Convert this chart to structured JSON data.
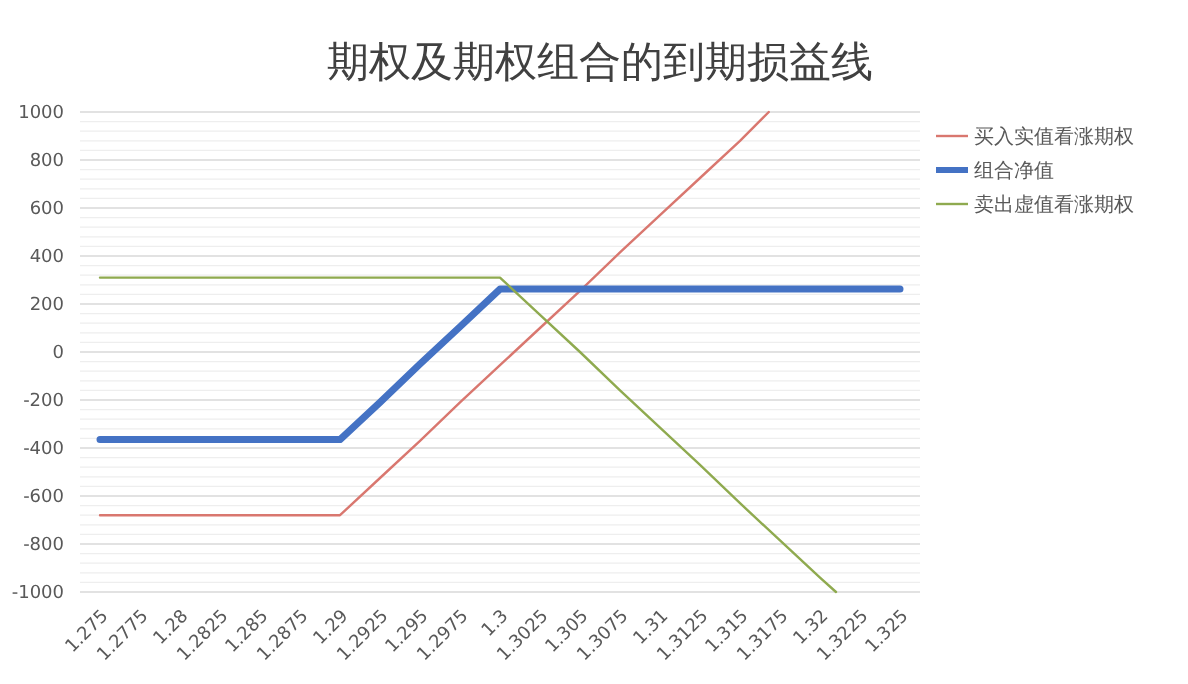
{
  "chart_data": {
    "type": "line",
    "title": "期权及期权组合的到期损益线",
    "xlim": [
      1.27375,
      1.32625
    ],
    "xticks": [
      1.275,
      1.2775,
      1.28,
      1.2825,
      1.285,
      1.2875,
      1.29,
      1.2925,
      1.295,
      1.2975,
      1.3,
      1.3025,
      1.305,
      1.3075,
      1.31,
      1.3125,
      1.315,
      1.3175,
      1.32,
      1.3225,
      1.325
    ],
    "ylim": [
      -1000,
      1000
    ],
    "yticks": [
      -1000,
      -800,
      -600,
      -400,
      -200,
      0,
      200,
      400,
      600,
      800,
      1000
    ],
    "grid": "y",
    "legend": "right",
    "marker": "none",
    "line_style": "solid",
    "series": [
      {
        "name": "买入实值看涨期权",
        "color": "#d9776f",
        "x": [
          1.275,
          1.2775,
          1.28,
          1.2825,
          1.285,
          1.2875,
          1.29,
          1.2925,
          1.295,
          1.2975,
          1.3,
          1.3025,
          1.305,
          1.3075,
          1.31,
          1.3125,
          1.315,
          1.3168
        ],
        "values": [
          -680,
          -680,
          -680,
          -680,
          -680,
          -680,
          -680,
          -525,
          -370,
          -210,
          -55,
          100,
          255,
          415,
          570,
          725,
          880,
          1000
        ]
      },
      {
        "name": "组合净值",
        "color": "#4472c4",
        "x": [
          1.275,
          1.2775,
          1.28,
          1.2825,
          1.285,
          1.2875,
          1.29,
          1.2925,
          1.295,
          1.2975,
          1.3,
          1.3025,
          1.305,
          1.3075,
          1.31,
          1.3125,
          1.315,
          1.3175,
          1.32,
          1.3225,
          1.325
        ],
        "values": [
          -365,
          -365,
          -365,
          -365,
          -365,
          -365,
          -365,
          -210,
          -50,
          105,
          262,
          262,
          262,
          262,
          262,
          262,
          262,
          262,
          262,
          262,
          262
        ]
      },
      {
        "name": "卖出虚值看涨期权",
        "color": "#8faa4f",
        "x": [
          1.275,
          1.2775,
          1.28,
          1.2825,
          1.285,
          1.2875,
          1.29,
          1.2925,
          1.295,
          1.2975,
          1.3,
          1.3025,
          1.305,
          1.3075,
          1.31,
          1.3125,
          1.315,
          1.3175,
          1.32,
          1.321
        ],
        "values": [
          310,
          310,
          310,
          310,
          310,
          310,
          310,
          310,
          310,
          310,
          310,
          155,
          0,
          -160,
          -315,
          -470,
          -630,
          -785,
          -940,
          -1000
        ]
      }
    ]
  }
}
